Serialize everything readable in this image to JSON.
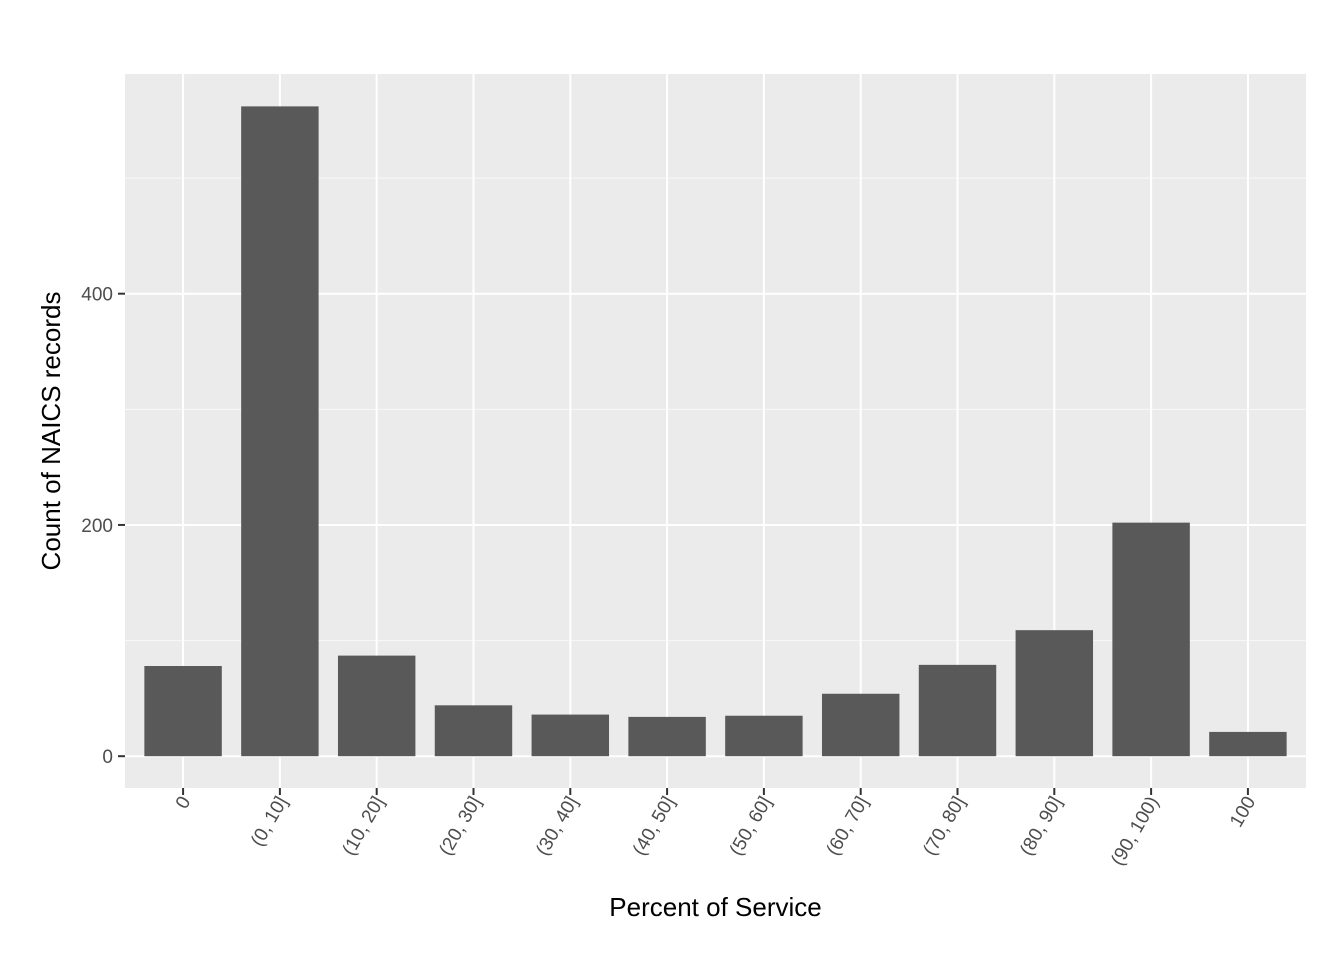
{
  "chart_data": {
    "type": "bar",
    "title": "",
    "xlabel": "Percent of Service",
    "ylabel": "Count of NAICS records",
    "categories": [
      "0",
      "(0, 10]",
      "(10, 20]",
      "(20, 30]",
      "(30, 40]",
      "(40, 50]",
      "(50, 60]",
      "(60, 70]",
      "(70, 80]",
      "(80, 90]",
      "(90, 100)",
      "100"
    ],
    "values": [
      78,
      562,
      87,
      44,
      36,
      34,
      35,
      54,
      79,
      109,
      202,
      21
    ],
    "ylim": [
      -27.5,
      590
    ],
    "yticks": [
      0,
      200,
      400
    ],
    "y_minor_ticks": [
      100,
      300,
      500
    ],
    "grid": true,
    "x_tick_rotation": -60,
    "colors": {
      "bar": "#595959",
      "panel": "#ebebeb",
      "grid_major": "#ffffff",
      "tick_text": "#4d4d4d",
      "axis_title": "#000000"
    }
  }
}
